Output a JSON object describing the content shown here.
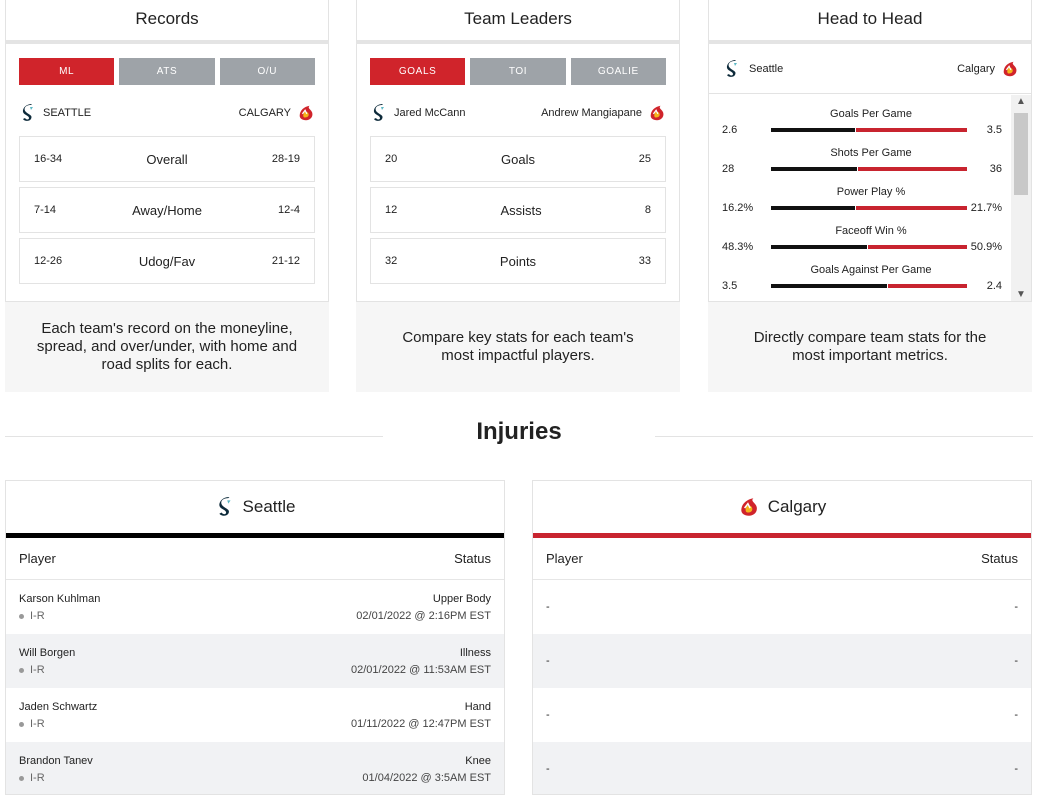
{
  "records": {
    "title": "Records",
    "tabs": [
      "ML",
      "ATS",
      "O/U"
    ],
    "team_left": "SEATTLE",
    "team_right": "CALGARY",
    "rows": [
      {
        "left": "16-34",
        "label": "Overall",
        "right": "28-19"
      },
      {
        "left": "7-14",
        "label": "Away/Home",
        "right": "12-4"
      },
      {
        "left": "12-26",
        "label": "Udog/Fav",
        "right": "21-12"
      }
    ],
    "description": "Each team's record on the moneyline, spread, and over/under, with home and road splits for each."
  },
  "leaders": {
    "title": "Team Leaders",
    "tabs": [
      "GOALS",
      "TOI",
      "GOALIE"
    ],
    "player_left": "Jared McCann",
    "player_right": "Andrew Mangiapane",
    "rows": [
      {
        "left": "20",
        "label": "Goals",
        "right": "25"
      },
      {
        "left": "12",
        "label": "Assists",
        "right": "8"
      },
      {
        "left": "32",
        "label": "Points",
        "right": "33"
      }
    ],
    "description": "Compare key stats for each team's most impactful players."
  },
  "h2h": {
    "title": "Head to Head",
    "team_left": "Seattle",
    "team_right": "Calgary",
    "stats": [
      {
        "label": "Goals Per Game",
        "left": "2.6",
        "right": "3.5",
        "left_share": 0.43
      },
      {
        "label": "Shots Per Game",
        "left": "28",
        "right": "36",
        "left_share": 0.44
      },
      {
        "label": "Power Play %",
        "left": "16.2%",
        "right": "21.7%",
        "left_share": 0.43
      },
      {
        "label": "Faceoff Win %",
        "left": "48.3%",
        "right": "50.9%",
        "left_share": 0.49
      },
      {
        "label": "Goals Against Per Game",
        "left": "3.5",
        "right": "2.4",
        "left_share": 0.59
      }
    ],
    "description": "Directly compare team stats for the most important metrics."
  },
  "injuries": {
    "title": "Injuries",
    "columns": {
      "player": "Player",
      "status": "Status"
    },
    "seattle": {
      "name": "Seattle",
      "accent": "#000000",
      "rows": [
        {
          "player": "Karson Kuhlman",
          "tag": "I-R",
          "status": "Upper Body",
          "date": "02/01/2022 @ 2:16PM EST"
        },
        {
          "player": "Will Borgen",
          "tag": "I-R",
          "status": "Illness",
          "date": "02/01/2022 @ 11:53AM EST"
        },
        {
          "player": "Jaden Schwartz",
          "tag": "I-R",
          "status": "Hand",
          "date": "01/11/2022 @ 12:47PM EST"
        },
        {
          "player": "Brandon Tanev",
          "tag": "I-R",
          "status": "Knee",
          "date": "01/04/2022 @ 3:5AM EST"
        }
      ]
    },
    "calgary": {
      "name": "Calgary",
      "accent": "#c8242f",
      "rows": [
        {
          "player": "-",
          "status": "-"
        },
        {
          "player": "-",
          "status": "-"
        },
        {
          "player": "-",
          "status": "-"
        },
        {
          "player": "-",
          "status": "-"
        }
      ]
    }
  },
  "colors": {
    "active_tab": "#d0242b",
    "inactive_tab": "#9ea3a8",
    "kraken": "#0d2a3a",
    "flames": "#d0242b"
  },
  "icons": {
    "seattle": "kraken-logo-icon",
    "calgary": "flames-logo-icon"
  }
}
